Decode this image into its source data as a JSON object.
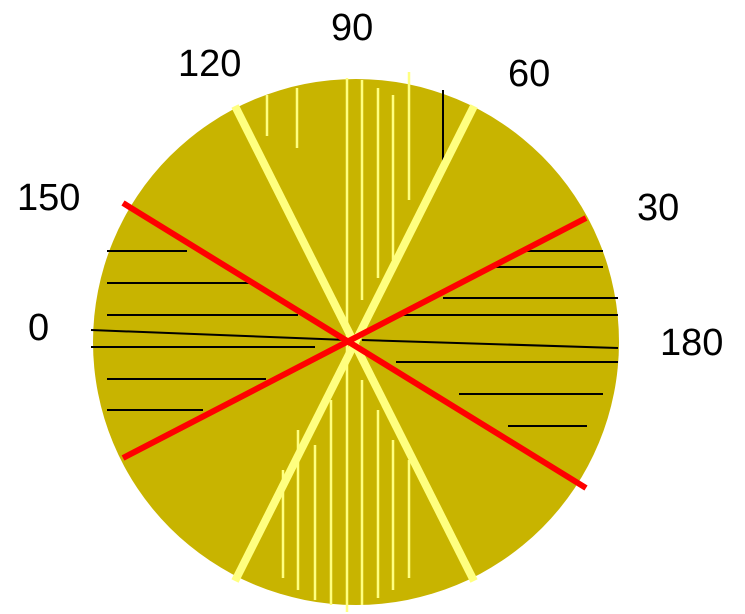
{
  "diagram": {
    "colors": {
      "background": "#ffffff",
      "disc": "#c8b400",
      "yellow_lines": "#ffff80",
      "red_lines": "#ff0000",
      "black_lines": "#000000",
      "label_text": "#000000"
    },
    "angle_labels": {
      "deg_90": "90",
      "deg_120": "120",
      "deg_60": "60",
      "deg_150": "150",
      "deg_30": "30",
      "deg_0": "0",
      "deg_180": "180"
    }
  }
}
